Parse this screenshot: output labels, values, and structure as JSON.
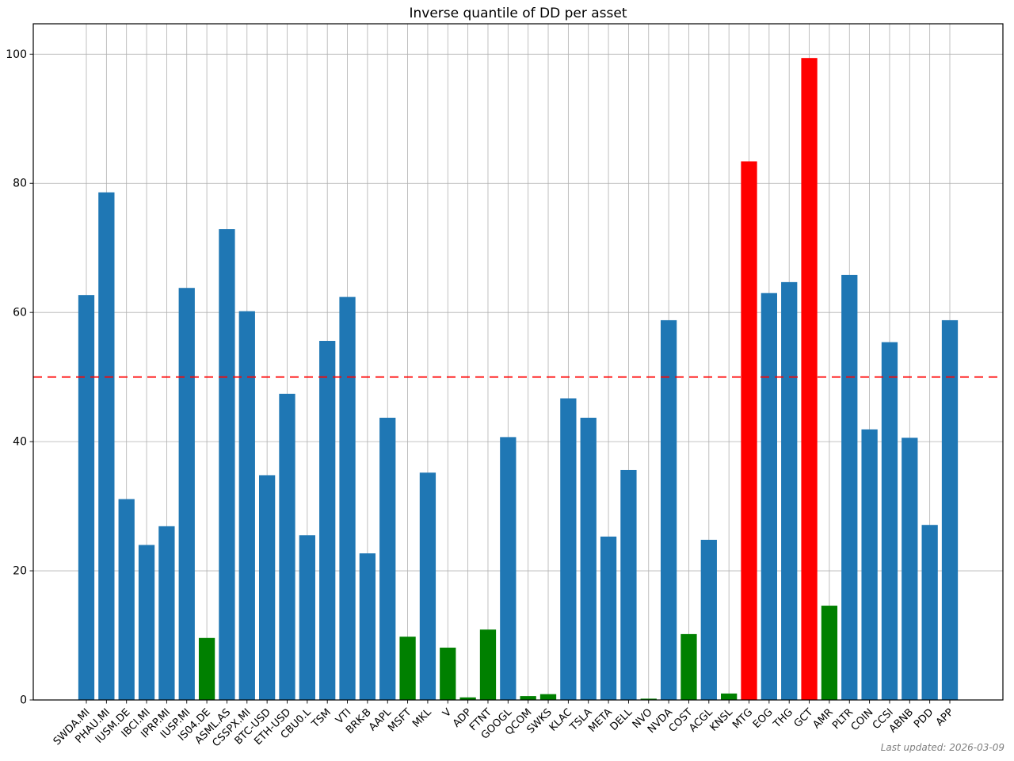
{
  "title": "Inverse quantile of DD per asset",
  "footer": {
    "last_updated": "Last updated: 2026-03-09"
  },
  "chart_data": {
    "type": "bar",
    "title": "Inverse quantile of DD per asset",
    "xlabel": "",
    "ylabel": "",
    "categories": [
      "SWDA.MI",
      "PHAU.MI",
      "IUSM.DE",
      "IBCI.MI",
      "IPRP.MI",
      "IUSP.MI",
      "IS04.DE",
      "ASML.AS",
      "CSSPX.MI",
      "BTC-USD",
      "ETH-USD",
      "CBU0.L",
      "TSM",
      "VTI",
      "BRK-B",
      "AAPL",
      "MSFT",
      "MKL",
      "V",
      "ADP",
      "FTNT",
      "GOOGL",
      "QCOM",
      "SWKS",
      "KLAC",
      "TSLA",
      "META",
      "DELL",
      "NVO",
      "NVDA",
      "COST",
      "ACGL",
      "KNSL",
      "MTG",
      "EOG",
      "THG",
      "GCT",
      "AMR",
      "PLTR",
      "COIN",
      "CCSI",
      "ABNB",
      "PDD",
      "APP"
    ],
    "values": [
      62.7,
      78.6,
      31.1,
      24.0,
      26.9,
      63.8,
      9.6,
      72.9,
      60.2,
      34.8,
      47.4,
      25.5,
      55.6,
      62.4,
      22.7,
      43.7,
      9.8,
      35.2,
      8.1,
      0.4,
      10.9,
      40.7,
      0.6,
      0.9,
      46.7,
      43.7,
      25.3,
      35.6,
      0.2,
      58.8,
      10.2,
      24.8,
      1.0,
      83.4,
      63.0,
      64.7,
      99.4,
      14.6,
      65.8,
      41.9,
      55.4,
      40.6,
      27.1,
      58.8
    ],
    "bar_color_keys": [
      "blue",
      "blue",
      "blue",
      "blue",
      "blue",
      "blue",
      "green",
      "blue",
      "blue",
      "blue",
      "blue",
      "blue",
      "blue",
      "blue",
      "blue",
      "blue",
      "green",
      "blue",
      "green",
      "green",
      "green",
      "blue",
      "green",
      "green",
      "blue",
      "blue",
      "blue",
      "blue",
      "green",
      "blue",
      "green",
      "blue",
      "green",
      "red",
      "blue",
      "blue",
      "red",
      "green",
      "blue",
      "blue",
      "blue",
      "blue",
      "blue",
      "blue"
    ],
    "palette": {
      "blue": "#1f77b4",
      "green": "#008000",
      "red": "#ff0000"
    },
    "yticks": [
      0,
      20,
      40,
      60,
      80,
      100
    ],
    "ylim": [
      0,
      104.7
    ],
    "grid": true,
    "grid_color": "#b0b0b0",
    "threshold_line": {
      "y": 50,
      "color": "#ff0000",
      "style": "dashed"
    },
    "legend": "none",
    "bar_width_fraction": 0.8,
    "xtick_rotation_deg": 45,
    "footer_note": "Last updated: 2026-03-09"
  }
}
